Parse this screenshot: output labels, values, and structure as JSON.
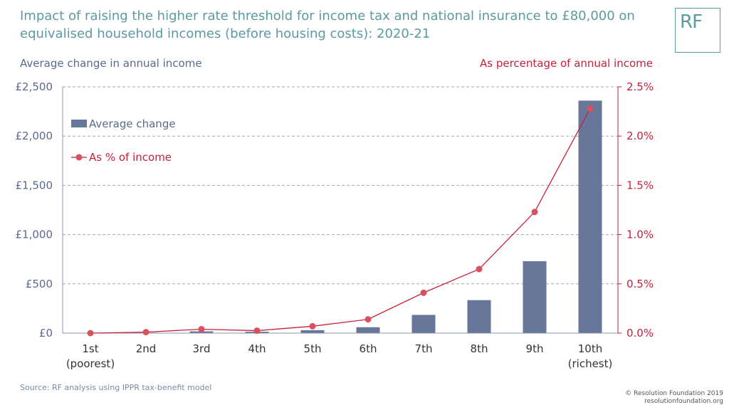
{
  "header": {
    "title": "Impact of raising the higher rate threshold for income tax and national insurance to £80,000 on equivalised household incomes (before housing costs): 2020-21",
    "logo_text": "RF"
  },
  "footer": {
    "source": "Source: RF analysis using IPPR tax-benefit model",
    "credit_line1": "© Resolution Foundation 2019",
    "credit_line2": "resolutionfoundation.org"
  },
  "colors": {
    "bar": "#667799",
    "line": "#c8203a",
    "marker": "#d9505f",
    "accent_title": "#5b9aa0",
    "left_axis": "#5a6a8e",
    "gridline": "#a6a6a6"
  },
  "chart_data": {
    "type": "bar",
    "categories": [
      "1st\n(poorest)",
      "2nd",
      "3rd",
      "4th",
      "5th",
      "6th",
      "7th",
      "8th",
      "9th",
      "10th\n(richest)"
    ],
    "ylabel": "Average change in annual income",
    "y2label": "As percentage of annual income",
    "ylim": [
      0,
      2500
    ],
    "y2lim": [
      0,
      0.025
    ],
    "yticks": [
      "£0",
      "£500",
      "£1,000",
      "£1,500",
      "£2,000",
      "£2,500"
    ],
    "y2ticks": [
      "0.0%",
      "0.5%",
      "1.0%",
      "1.5%",
      "2.0%",
      "2.5%"
    ],
    "grid": true,
    "legend_position": "top-left",
    "series": [
      {
        "name": "Average change",
        "kind": "bar",
        "axis": "left",
        "values": [
          0,
          5,
          18,
          14,
          30,
          60,
          185,
          335,
          730,
          2360
        ]
      },
      {
        "name": "As % of income",
        "kind": "line",
        "axis": "right",
        "values": [
          0.0,
          0.0001,
          0.0004,
          0.00025,
          0.0007,
          0.0014,
          0.0041,
          0.0065,
          0.0123,
          0.0228
        ]
      }
    ]
  }
}
